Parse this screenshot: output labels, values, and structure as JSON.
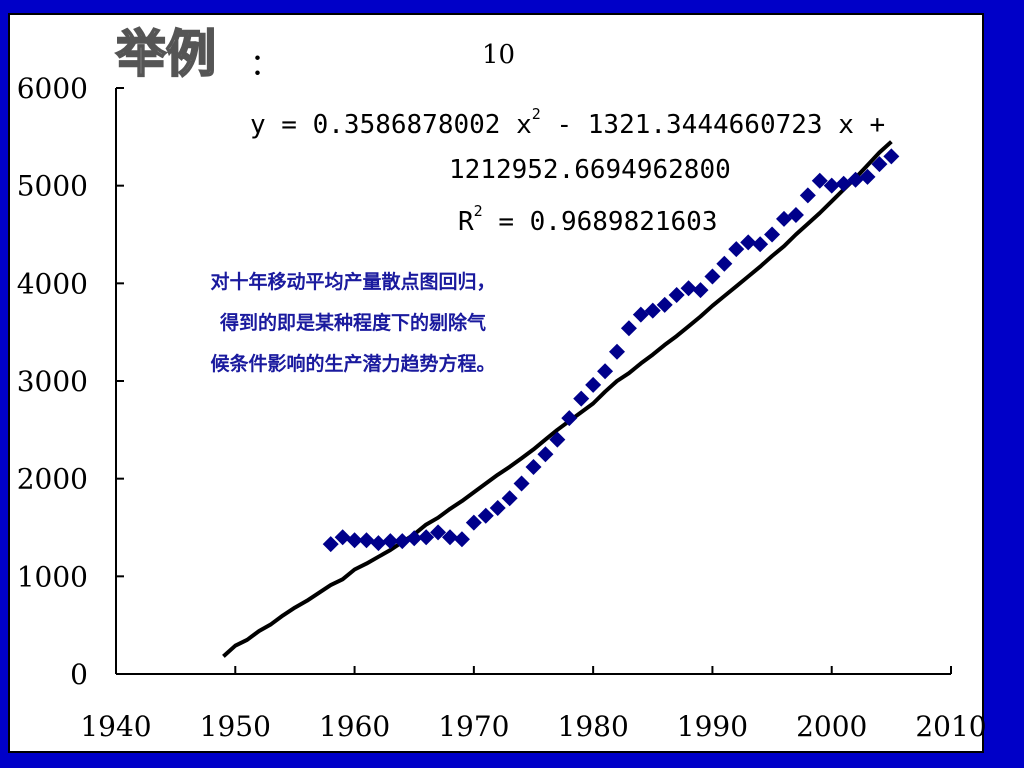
{
  "slide": {
    "title": "举例",
    "title_colon": "：",
    "window": "10"
  },
  "equation": {
    "line1_prefix": "y = 0.3586878002 x",
    "line1_exp": "2",
    "line1_suffix": " - 1321.3444660723 x +",
    "line2": "1212952.6694962800",
    "r2_prefix": "R",
    "r2_exp": "2",
    "r2_suffix": " = 0.9689821603"
  },
  "note": {
    "line1": "对十年移动平均产量散点图回归，",
    "line2": "得到的即是某种程度下的剔除气",
    "line3": "候条件影响的生产潜力趋势方程。"
  },
  "colors": {
    "background": "#0000c8",
    "marker": "#00008b",
    "trend": "#000000",
    "note_text": "#1a1a9e"
  },
  "chart_data": {
    "type": "scatter",
    "xlim": [
      1940,
      2010
    ],
    "ylim": [
      0,
      6000
    ],
    "x_ticks": [
      "1940",
      "1950",
      "1960",
      "1970",
      "1980",
      "1990",
      "2000",
      "2010"
    ],
    "y_ticks": [
      "0",
      "1000",
      "2000",
      "3000",
      "4000",
      "5000",
      "6000"
    ],
    "grid": false,
    "series": [
      {
        "marker": "diamond",
        "x": [
          1958,
          1959,
          1960,
          1961,
          1962,
          1963,
          1964,
          1965,
          1966,
          1967,
          1968,
          1969,
          1970,
          1971,
          1972,
          1973,
          1974,
          1975,
          1976,
          1977,
          1978,
          1979,
          1980,
          1981,
          1982,
          1983,
          1984,
          1985,
          1986,
          1987,
          1988,
          1989,
          1990,
          1991,
          1992,
          1993,
          1994,
          1995,
          1996,
          1997,
          1998,
          1999,
          2000,
          2001,
          2002,
          2003,
          2004,
          2005
        ],
        "y": [
          1330,
          1400,
          1370,
          1370,
          1340,
          1360,
          1360,
          1390,
          1400,
          1450,
          1400,
          1380,
          1550,
          1620,
          1700,
          1800,
          1950,
          2120,
          2250,
          2400,
          2620,
          2820,
          2960,
          3100,
          3300,
          3540,
          3680,
          3720,
          3780,
          3880,
          3950,
          3930,
          4070,
          4200,
          4350,
          4420,
          4400,
          4500,
          4660,
          4700,
          4900,
          5050,
          5000,
          5020,
          5060,
          5090,
          5220,
          5300
        ]
      },
      {
        "type": "line",
        "x": [
          1949,
          1950,
          1951,
          1952,
          1953,
          1954,
          1955,
          1956,
          1957,
          1958,
          1959,
          1960,
          1961,
          1962,
          1963,
          1964,
          1965,
          1966,
          1967,
          1968,
          1969,
          1970,
          1971,
          1972,
          1973,
          1974,
          1975,
          1976,
          1977,
          1978,
          1979,
          1980,
          1981,
          1982,
          1983,
          1984,
          1985,
          1986,
          1987,
          1988,
          1989,
          1990,
          1991,
          1992,
          1993,
          1994,
          1995,
          1996,
          1997,
          1998,
          1999,
          2000,
          2001,
          2002,
          2003,
          2004,
          2005
        ],
        "y": [
          180,
          290,
          350,
          440,
          510,
          600,
          680,
          750,
          830,
          910,
          970,
          1070,
          1130,
          1200,
          1270,
          1350,
          1430,
          1530,
          1600,
          1690,
          1770,
          1860,
          1950,
          2040,
          2120,
          2210,
          2300,
          2400,
          2500,
          2590,
          2680,
          2770,
          2890,
          3000,
          3080,
          3180,
          3270,
          3370,
          3460,
          3560,
          3660,
          3770,
          3870,
          3970,
          4070,
          4170,
          4280,
          4380,
          4500,
          4610,
          4720,
          4840,
          4960,
          5080,
          5210,
          5340,
          5450
        ]
      }
    ]
  }
}
